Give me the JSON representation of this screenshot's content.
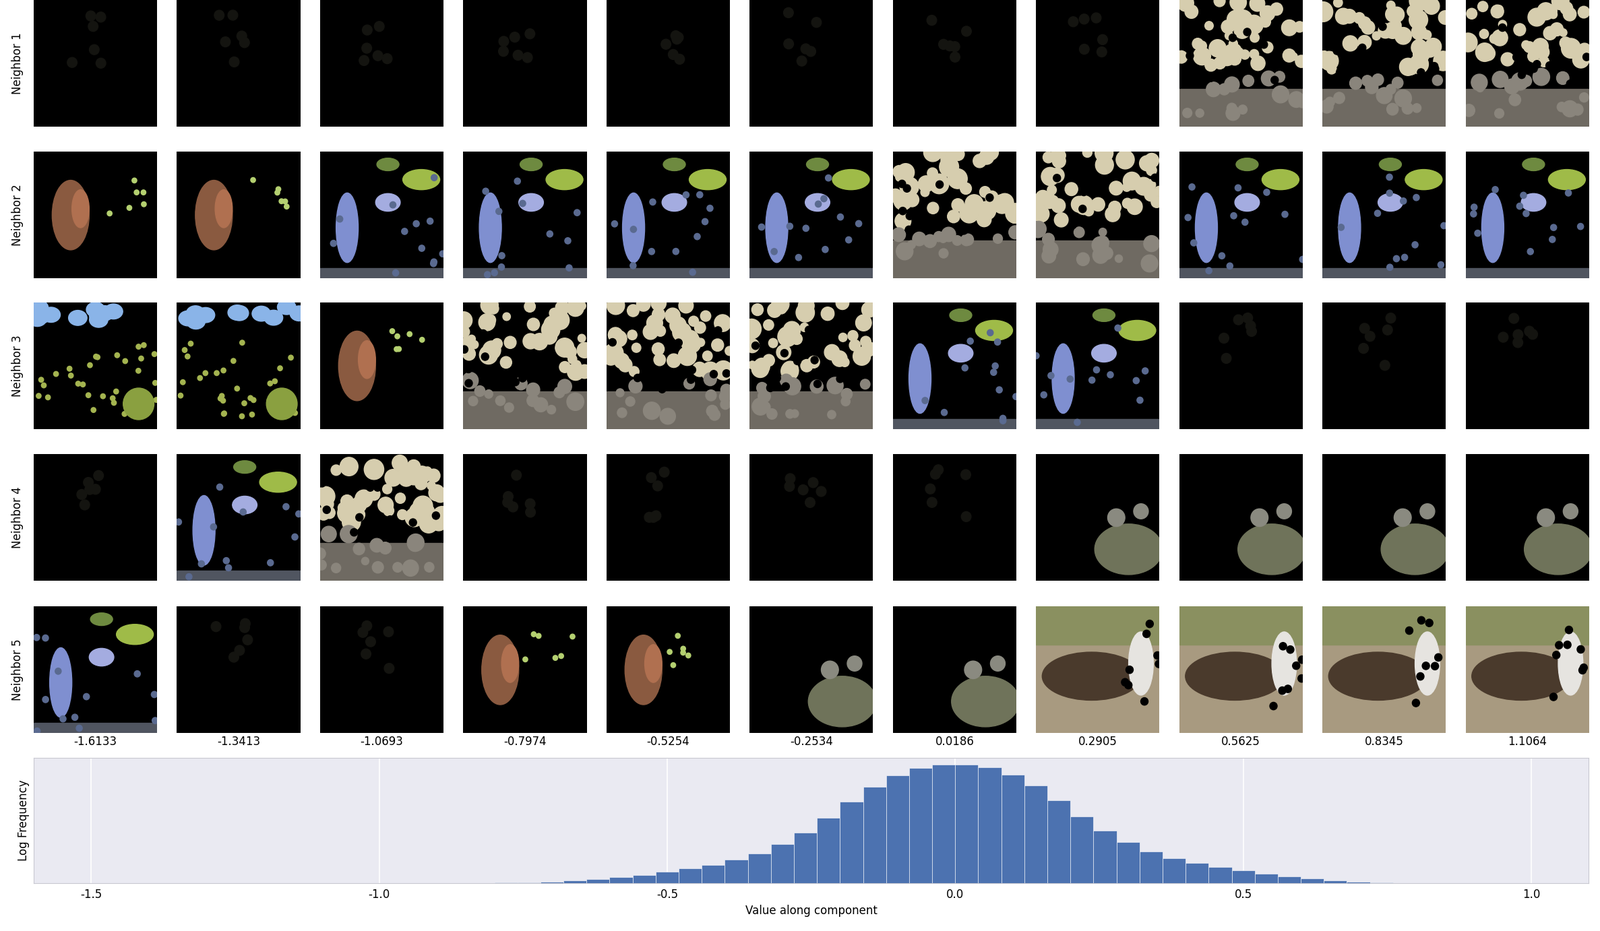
{
  "image_grid": {
    "row_labels": [
      "Neighbor 1",
      "Neighbor 2",
      "Neighbor 3",
      "Neighbor 4",
      "Neighbor 5"
    ],
    "column_values": [
      -1.6133,
      -1.3413,
      -1.0693,
      -0.7974,
      -0.5254,
      -0.2534,
      0.0186,
      0.2905,
      0.5625,
      0.8345,
      1.1064
    ]
  },
  "chart_data": {
    "type": "histogram",
    "xlabel": "Value along component",
    "ylabel": "Log Frequency",
    "bins": [
      -0.84,
      -0.8,
      -0.76,
      -0.72,
      -0.68,
      -0.64,
      -0.6,
      -0.56,
      -0.52,
      -0.48,
      -0.44,
      -0.4,
      -0.36,
      -0.32,
      -0.28,
      -0.24,
      -0.2,
      -0.16,
      -0.12,
      -0.08,
      -0.04,
      0.0,
      0.04,
      0.08,
      0.12,
      0.16,
      0.2,
      0.24,
      0.28,
      0.32,
      0.36,
      0.4,
      0.44,
      0.48,
      0.52,
      0.56,
      0.6,
      0.64,
      0.68,
      0.72,
      0.76
    ],
    "counts": [
      0.01,
      0.02,
      0.04,
      0.06,
      0.11,
      0.18,
      0.27,
      0.39,
      0.54,
      0.69,
      0.87,
      1.11,
      1.41,
      1.86,
      2.4,
      3.12,
      3.9,
      4.62,
      5.16,
      5.52,
      5.66,
      5.66,
      5.55,
      5.2,
      4.68,
      3.96,
      3.2,
      2.5,
      1.95,
      1.5,
      1.2,
      0.95,
      0.76,
      0.6,
      0.45,
      0.32,
      0.21,
      0.12,
      0.06,
      0.02
    ],
    "color": "#4c72b0",
    "xlim": [
      -1.6,
      1.1
    ],
    "xticks": [
      -1.5,
      -1.0,
      -0.5,
      0.0,
      0.5,
      1.0
    ],
    "ylim": [
      0,
      6
    ],
    "grid": true,
    "tick_labels": "x"
  }
}
